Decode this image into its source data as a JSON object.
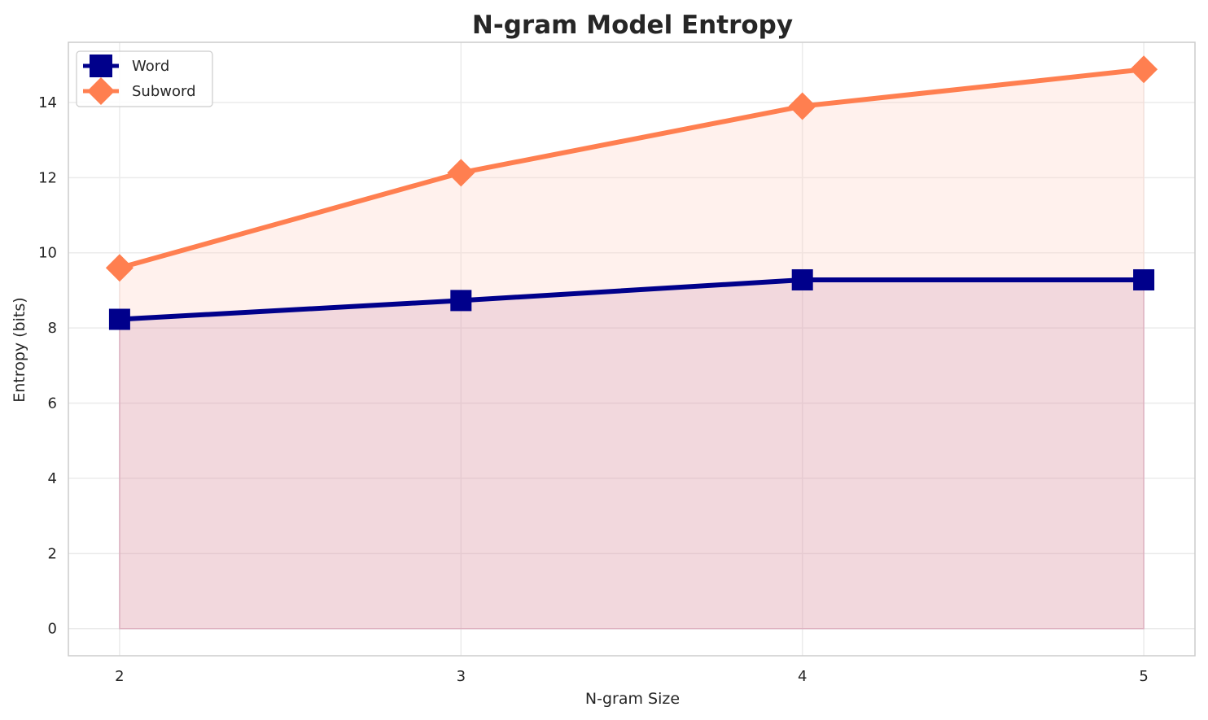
{
  "chart_data": {
    "type": "line",
    "title": "N-gram Model Entropy",
    "xlabel": "N-gram Size",
    "ylabel": "Entropy (bits)",
    "x": [
      2,
      3,
      4,
      5
    ],
    "xticks": [
      "2",
      "3",
      "4",
      "5"
    ],
    "yticks": [
      "0",
      "2",
      "4",
      "6",
      "8",
      "10",
      "12",
      "14"
    ],
    "ylim": [
      -0.72,
      15.6
    ],
    "xlim": [
      1.85,
      5.15
    ],
    "grid": true,
    "filled_area": true,
    "legend_position": "top-left",
    "series": [
      {
        "name": "Word",
        "values": [
          8.23,
          8.73,
          9.28,
          9.28
        ],
        "color": "#00008b",
        "fill": "#800060",
        "marker": "square"
      },
      {
        "name": "Subword",
        "values": [
          9.6,
          12.13,
          13.9,
          14.88
        ],
        "color": "#ff7f50",
        "fill": "#ffd0c4",
        "marker": "diamond"
      }
    ]
  }
}
